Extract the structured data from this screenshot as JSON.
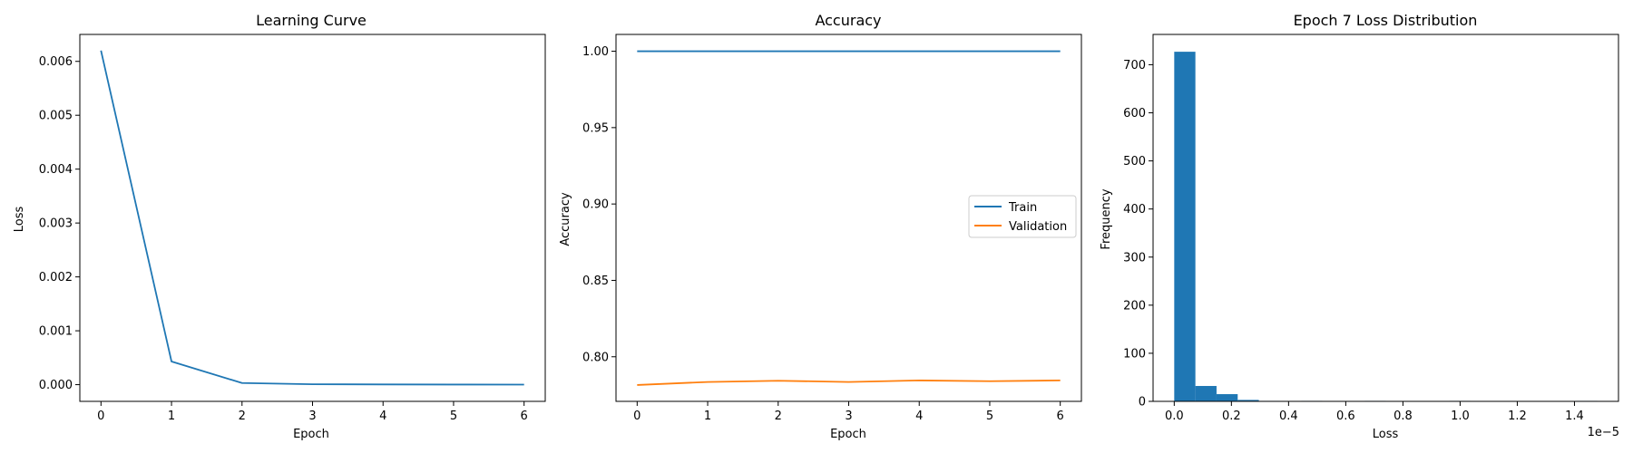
{
  "colors": {
    "series1": "#1f77b4",
    "series2": "#ff7f0e"
  },
  "chart_data": [
    {
      "type": "line",
      "title": "Learning Curve",
      "xlabel": "Epoch",
      "ylabel": "Loss",
      "xlim": [
        -0.3,
        6.3
      ],
      "ylim": [
        -0.00031,
        0.0065
      ],
      "xticks": [
        0,
        1,
        2,
        3,
        4,
        5,
        6
      ],
      "xticklabels": [
        "0",
        "1",
        "2",
        "3",
        "4",
        "5",
        "6"
      ],
      "yticks": [
        0,
        0.001,
        0.002,
        0.003,
        0.004,
        0.005,
        0.006
      ],
      "yticklabels": [
        "0.000",
        "0.001",
        "0.002",
        "0.003",
        "0.004",
        "0.005",
        "0.006"
      ],
      "grid": false,
      "series": [
        {
          "x": [
            0,
            1,
            2,
            3,
            4,
            5,
            6
          ],
          "values": [
            0.0062,
            0.00043,
            3e-05,
            8e-06,
            4e-06,
            2e-06,
            1e-06
          ],
          "color": "#1f77b4"
        }
      ]
    },
    {
      "type": "line",
      "title": "Accuracy",
      "xlabel": "Epoch",
      "ylabel": "Accuracy",
      "xlim": [
        -0.3,
        6.3
      ],
      "ylim": [
        0.7708,
        1.011
      ],
      "xticks": [
        0,
        1,
        2,
        3,
        4,
        5,
        6
      ],
      "xticklabels": [
        "0",
        "1",
        "2",
        "3",
        "4",
        "5",
        "6"
      ],
      "yticks": [
        0.8,
        0.85,
        0.9,
        0.95,
        1.0
      ],
      "yticklabels": [
        "0.80",
        "0.85",
        "0.90",
        "0.95",
        "1.00"
      ],
      "grid": false,
      "legend": {
        "placement": "center-right",
        "entries": [
          "Train",
          "Validation"
        ]
      },
      "series": [
        {
          "name": "Train",
          "x": [
            0,
            1,
            2,
            3,
            4,
            5,
            6
          ],
          "values": [
            1.0,
            1.0,
            1.0,
            1.0,
            1.0,
            1.0,
            1.0
          ],
          "color": "#1f77b4"
        },
        {
          "name": "Validation",
          "x": [
            0,
            1,
            2,
            3,
            4,
            5,
            6
          ],
          "values": [
            0.7815,
            0.7835,
            0.7843,
            0.7835,
            0.7845,
            0.784,
            0.7845
          ],
          "color": "#ff7f0e"
        }
      ]
    },
    {
      "type": "bar",
      "subtype": "histogram",
      "title": "Epoch 7 Loss Distribution",
      "xlabel": "Loss",
      "ylabel": "Frequency",
      "offset_text": "1e−5",
      "xlim": [
        -0.074,
        1.554
      ],
      "ylim": [
        0,
        763
      ],
      "xticks": [
        0,
        0.2,
        0.4,
        0.6,
        0.8,
        1.0,
        1.2,
        1.4
      ],
      "xticklabels": [
        "0.0",
        "0.2",
        "0.4",
        "0.6",
        "0.8",
        "1.0",
        "1.2",
        "1.4"
      ],
      "yticks": [
        0,
        100,
        200,
        300,
        400,
        500,
        600,
        700
      ],
      "yticklabels": [
        "0",
        "100",
        "200",
        "300",
        "400",
        "500",
        "600",
        "700"
      ],
      "grid": false,
      "bin_edges": [
        0,
        0.074,
        0.148,
        0.222,
        0.296,
        0.37,
        0.444,
        0.518,
        0.592,
        0.666,
        0.74,
        0.814,
        0.888,
        0.962,
        1.036,
        1.11,
        1.184,
        1.258,
        1.332,
        1.406,
        1.48
      ],
      "values": [
        727,
        32,
        15,
        3,
        1,
        0,
        1,
        0,
        0,
        1,
        0,
        0,
        0,
        1,
        0,
        0,
        0,
        0,
        0,
        1
      ],
      "color": "#1f77b4"
    }
  ]
}
